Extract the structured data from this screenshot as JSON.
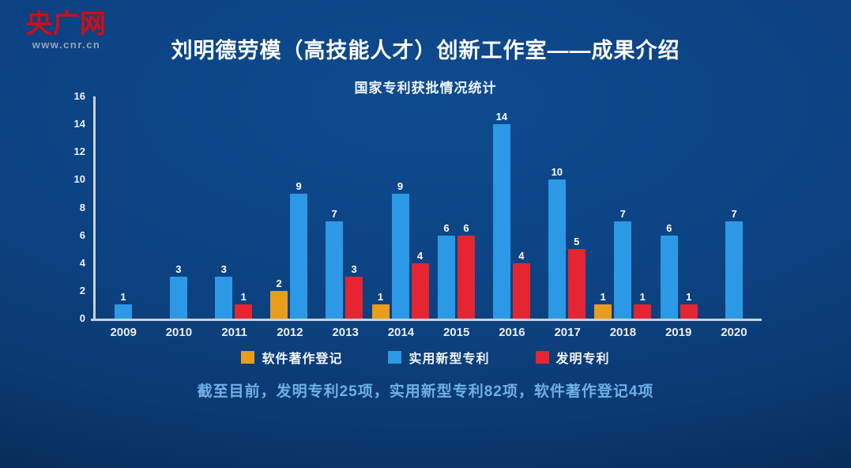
{
  "logo": {
    "name": "央广网",
    "url": "www.cnr.cn"
  },
  "header": {
    "title": "刘明德劳模（高技能人才）创新工作室——成果介绍"
  },
  "chart_data": {
    "type": "bar",
    "title": "国家专利获批情况统计",
    "categories": [
      "2009",
      "2010",
      "2011",
      "2012",
      "2013",
      "2014",
      "2015",
      "2016",
      "2017",
      "2018",
      "2019",
      "2020"
    ],
    "series": [
      {
        "name": "软件著作登记",
        "color": "#e89d1c",
        "values": [
          null,
          null,
          null,
          2,
          null,
          1,
          null,
          null,
          null,
          1,
          null,
          null
        ]
      },
      {
        "name": "实用新型专利",
        "color": "#2b99e5",
        "values": [
          1,
          3,
          3,
          9,
          7,
          9,
          6,
          14,
          10,
          7,
          6,
          7
        ]
      },
      {
        "name": "发明专利",
        "color": "#e52531",
        "values": [
          null,
          null,
          1,
          null,
          3,
          4,
          6,
          4,
          5,
          1,
          1,
          null
        ]
      }
    ],
    "ylim": [
      0,
      16
    ],
    "ytick_step": 2,
    "grid": false,
    "legend_position": "bottom",
    "value_labels": true
  },
  "footer": {
    "summary": "截至目前，发明专利25项，实用新型专利82项，软件著作登记4项"
  }
}
